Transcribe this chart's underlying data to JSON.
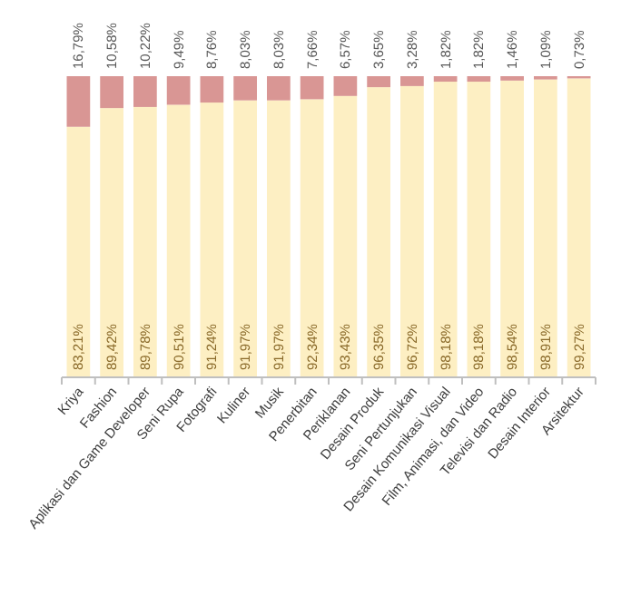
{
  "chart_data": {
    "type": "bar",
    "stacked": true,
    "categories": [
      "Kriya",
      "Fashion",
      "Aplikasi dan Game Developer",
      "Seni Rupa",
      "Fotografi",
      "Kuliner",
      "Musik",
      "Penerbitan",
      "Periklanan",
      "Desain Produk",
      "Seni Pertunjukan",
      "Desain Komunikasi Visual",
      "Film, Animasi, dan Video",
      "Televisi dan Radio",
      "Desain Interior",
      "Arsitektur"
    ],
    "series": [
      {
        "color": "#fdefc3",
        "values": [
          83.21,
          89.42,
          89.78,
          90.51,
          91.24,
          91.97,
          91.97,
          92.34,
          93.43,
          96.35,
          96.72,
          98.18,
          98.18,
          98.54,
          98.91,
          99.27
        ],
        "value_labels": [
          "83,21%",
          "89,42%",
          "89,78%",
          "90,51%",
          "91,24%",
          "91,97%",
          "91,97%",
          "92,34%",
          "93,43%",
          "96,35%",
          "96,72%",
          "98,18%",
          "98,18%",
          "98,54%",
          "98,91%",
          "99,27%"
        ]
      },
      {
        "color": "#d99694",
        "values": [
          16.79,
          10.58,
          10.22,
          9.49,
          8.76,
          8.03,
          8.03,
          7.66,
          6.57,
          3.65,
          3.28,
          1.82,
          1.82,
          1.46,
          1.09,
          0.73
        ],
        "value_labels": [
          "16,79%",
          "10,58%",
          "10,22%",
          "9,49%",
          "8,76%",
          "8,03%",
          "8,03%",
          "7,66%",
          "6,57%",
          "3,65%",
          "3,28%",
          "1,82%",
          "1,82%",
          "1,46%",
          "1,09%",
          "0,73%"
        ]
      }
    ]
  }
}
